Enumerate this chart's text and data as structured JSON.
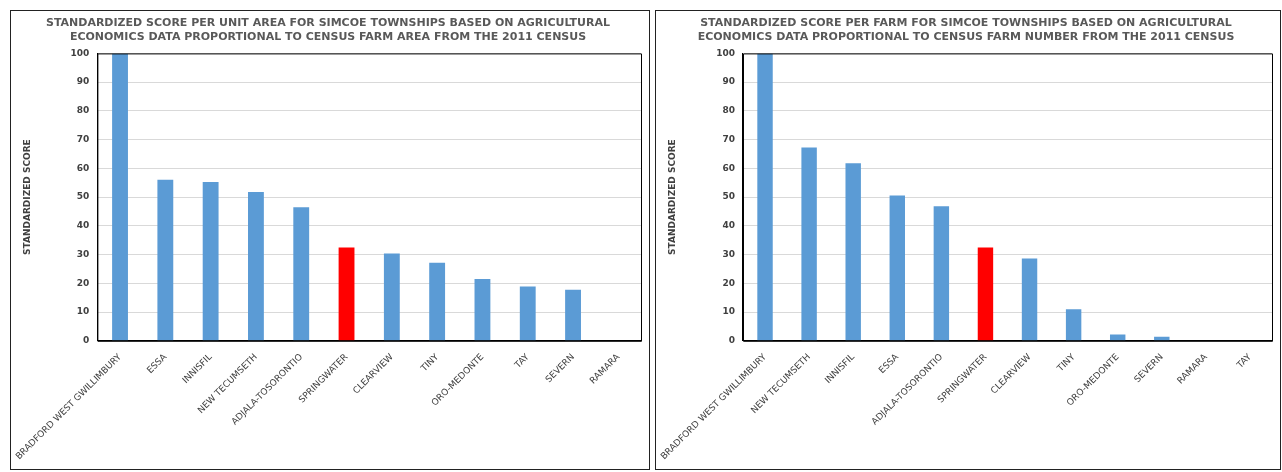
{
  "chart_data": [
    {
      "type": "bar",
      "title": [
        "STANDARDIZED SCORE PER UNIT AREA FOR SIMCOE TOWNSHIPS BASED ON AGRICULTURAL",
        "ECONOMICS DATA PROPORTIONAL TO CENSUS FARM AREA FROM THE 2011 CENSUS"
      ],
      "ylabel": "STANDARDIZED SCORE",
      "categories": [
        "BRADFORD WEST GWILLIMBURY",
        "ESSA",
        "INNISFIL",
        "NEW TECUMSETH",
        "ADJALA-TOSORONTIO",
        "SPRINGWATER",
        "CLEARVIEW",
        "TINY",
        "ORO-MEDONTE",
        "TAY",
        "SEVERN",
        "RAMARA"
      ],
      "values": [
        100,
        56,
        55.3,
        51.8,
        46.5,
        32.5,
        30.4,
        27.2,
        21.5,
        18.9,
        17.8,
        0
      ],
      "colors": [
        "#5b9bd5",
        "#5b9bd5",
        "#5b9bd5",
        "#5b9bd5",
        "#5b9bd5",
        "#ff0000",
        "#5b9bd5",
        "#5b9bd5",
        "#5b9bd5",
        "#5b9bd5",
        "#5b9bd5",
        "#5b9bd5"
      ],
      "ylim": [
        0,
        100
      ],
      "yticks": [
        0,
        10,
        20,
        30,
        40,
        50,
        60,
        70,
        80,
        90,
        100
      ],
      "grid": "y",
      "legend": false
    },
    {
      "type": "bar",
      "title": [
        "STANDARDIZED SCORE PER FARM FOR SIMCOE TOWNSHIPS BASED ON AGRICULTURAL",
        "ECONOMICS DATA PROPORTIONAL TO CENSUS FARM NUMBER FROM THE 2011 CENSUS"
      ],
      "ylabel": "STANDARDIZED SCORE",
      "categories": [
        "BRADFORD WEST GWILLIMBURY",
        "NEW TECUMSETH",
        "INNISFIL",
        "ESSA",
        "ADJALA-TOSORONTIO",
        "SPRINGWATER",
        "CLEARVIEW",
        "TINY",
        "ORO-MEDONTE",
        "SEVERN",
        "RAMARA",
        "TAY"
      ],
      "values": [
        100,
        67.3,
        61.8,
        50.6,
        46.8,
        32.5,
        28.6,
        11,
        2.2,
        1.4,
        0,
        0
      ],
      "colors": [
        "#5b9bd5",
        "#5b9bd5",
        "#5b9bd5",
        "#5b9bd5",
        "#5b9bd5",
        "#ff0000",
        "#5b9bd5",
        "#5b9bd5",
        "#5b9bd5",
        "#5b9bd5",
        "#5b9bd5",
        "#5b9bd5"
      ],
      "ylim": [
        0,
        100
      ],
      "yticks": [
        0,
        10,
        20,
        30,
        40,
        50,
        60,
        70,
        80,
        90,
        100
      ],
      "grid": "y",
      "legend": false
    }
  ]
}
